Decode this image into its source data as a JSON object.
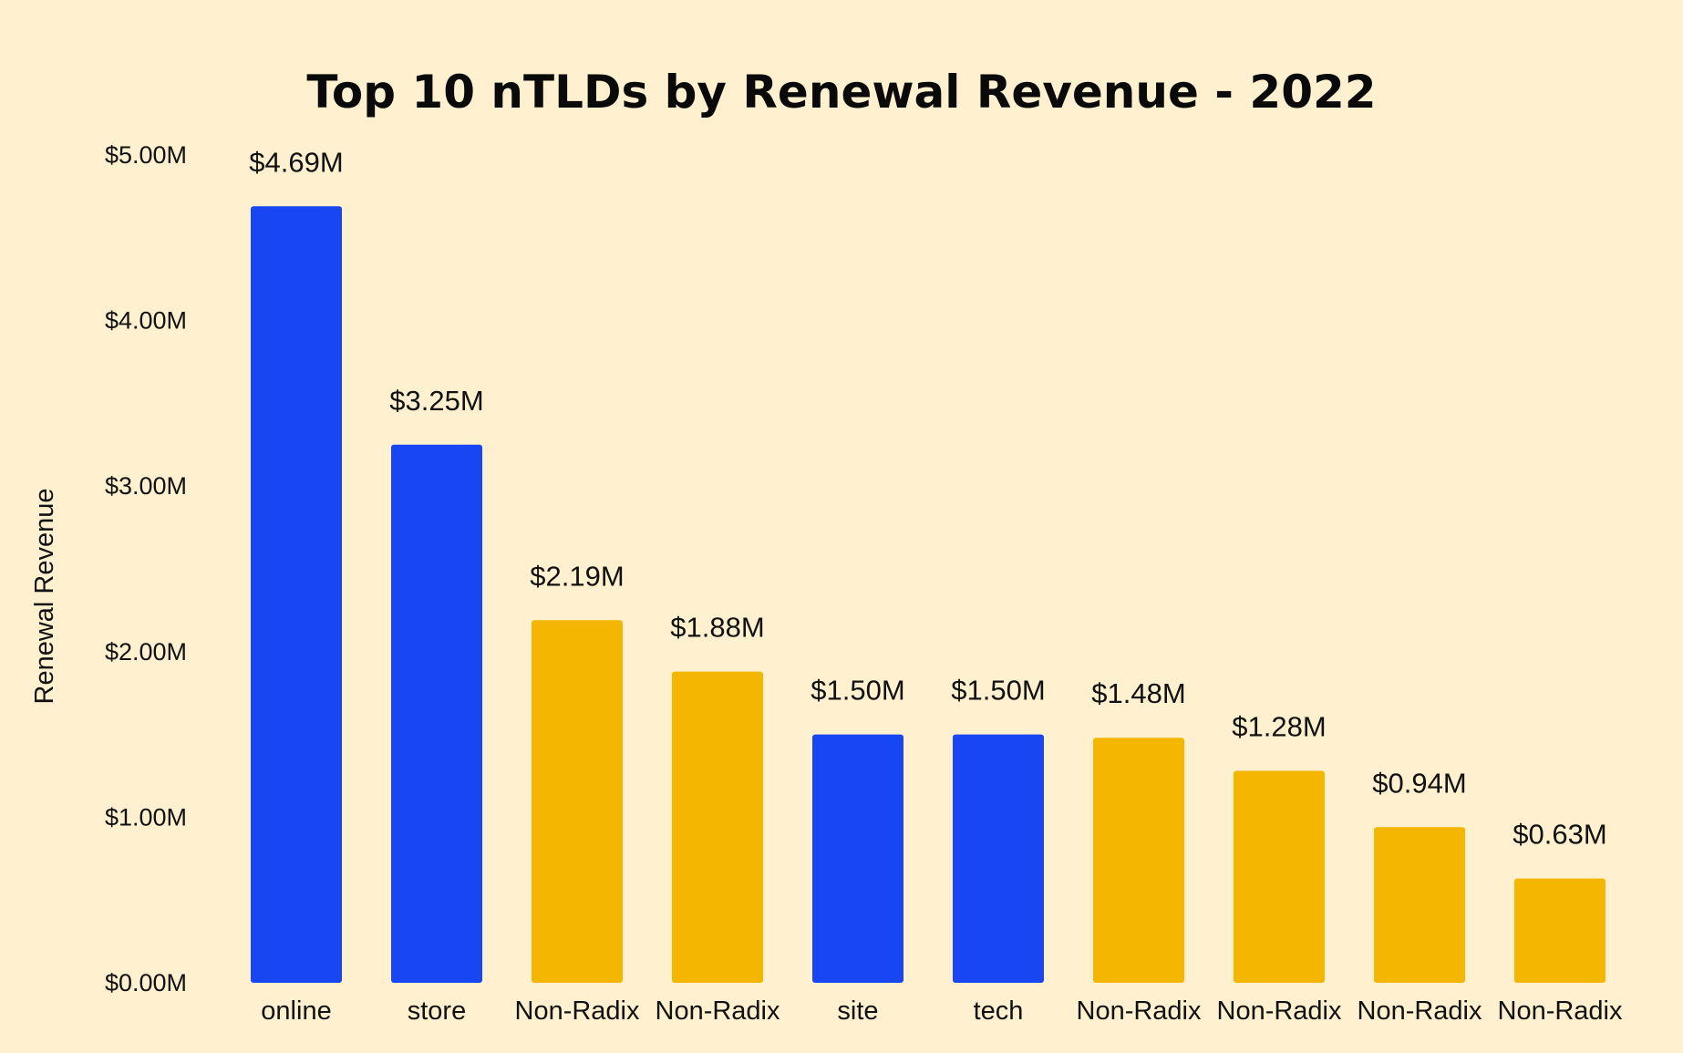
{
  "chart_data": {
    "type": "bar",
    "title": "Top 10 nTLDs by Renewal Revenue - 2022",
    "xlabel": "",
    "ylabel": "Renewal Revenue",
    "ylim": [
      0,
      5
    ],
    "y_unit": "millions USD",
    "y_ticks": [
      0,
      1,
      2,
      3,
      4,
      5
    ],
    "y_tick_labels": [
      "$0.00M",
      "$1.00M",
      "$2.00M",
      "$3.00M",
      "$4.00M",
      "$5.00M"
    ],
    "grid": false,
    "legend": "none",
    "categories": [
      "online",
      "store",
      "Non-Radix",
      "Non-Radix",
      "site",
      "tech",
      "Non-Radix",
      "Non-Radix",
      "Non-Radix",
      "Non-Radix"
    ],
    "values": [
      4.69,
      3.25,
      2.19,
      1.88,
      1.5,
      1.5,
      1.48,
      1.28,
      0.94,
      0.63
    ],
    "data_labels": [
      "$4.69M",
      "$3.25M",
      "$2.19M",
      "$1.88M",
      "$1.50M",
      "$1.50M",
      "$1.48M",
      "$1.28M",
      "$0.94M",
      "$0.63M"
    ],
    "bar_colors": [
      "#1746f2",
      "#1746f2",
      "#f5b602",
      "#f5b602",
      "#1746f2",
      "#1746f2",
      "#f5b602",
      "#f5b602",
      "#f5b602",
      "#f5b602"
    ]
  },
  "colors": {
    "background": "#fff1cf",
    "radix_bar": "#1746f2",
    "non_radix_bar": "#f5b602"
  }
}
